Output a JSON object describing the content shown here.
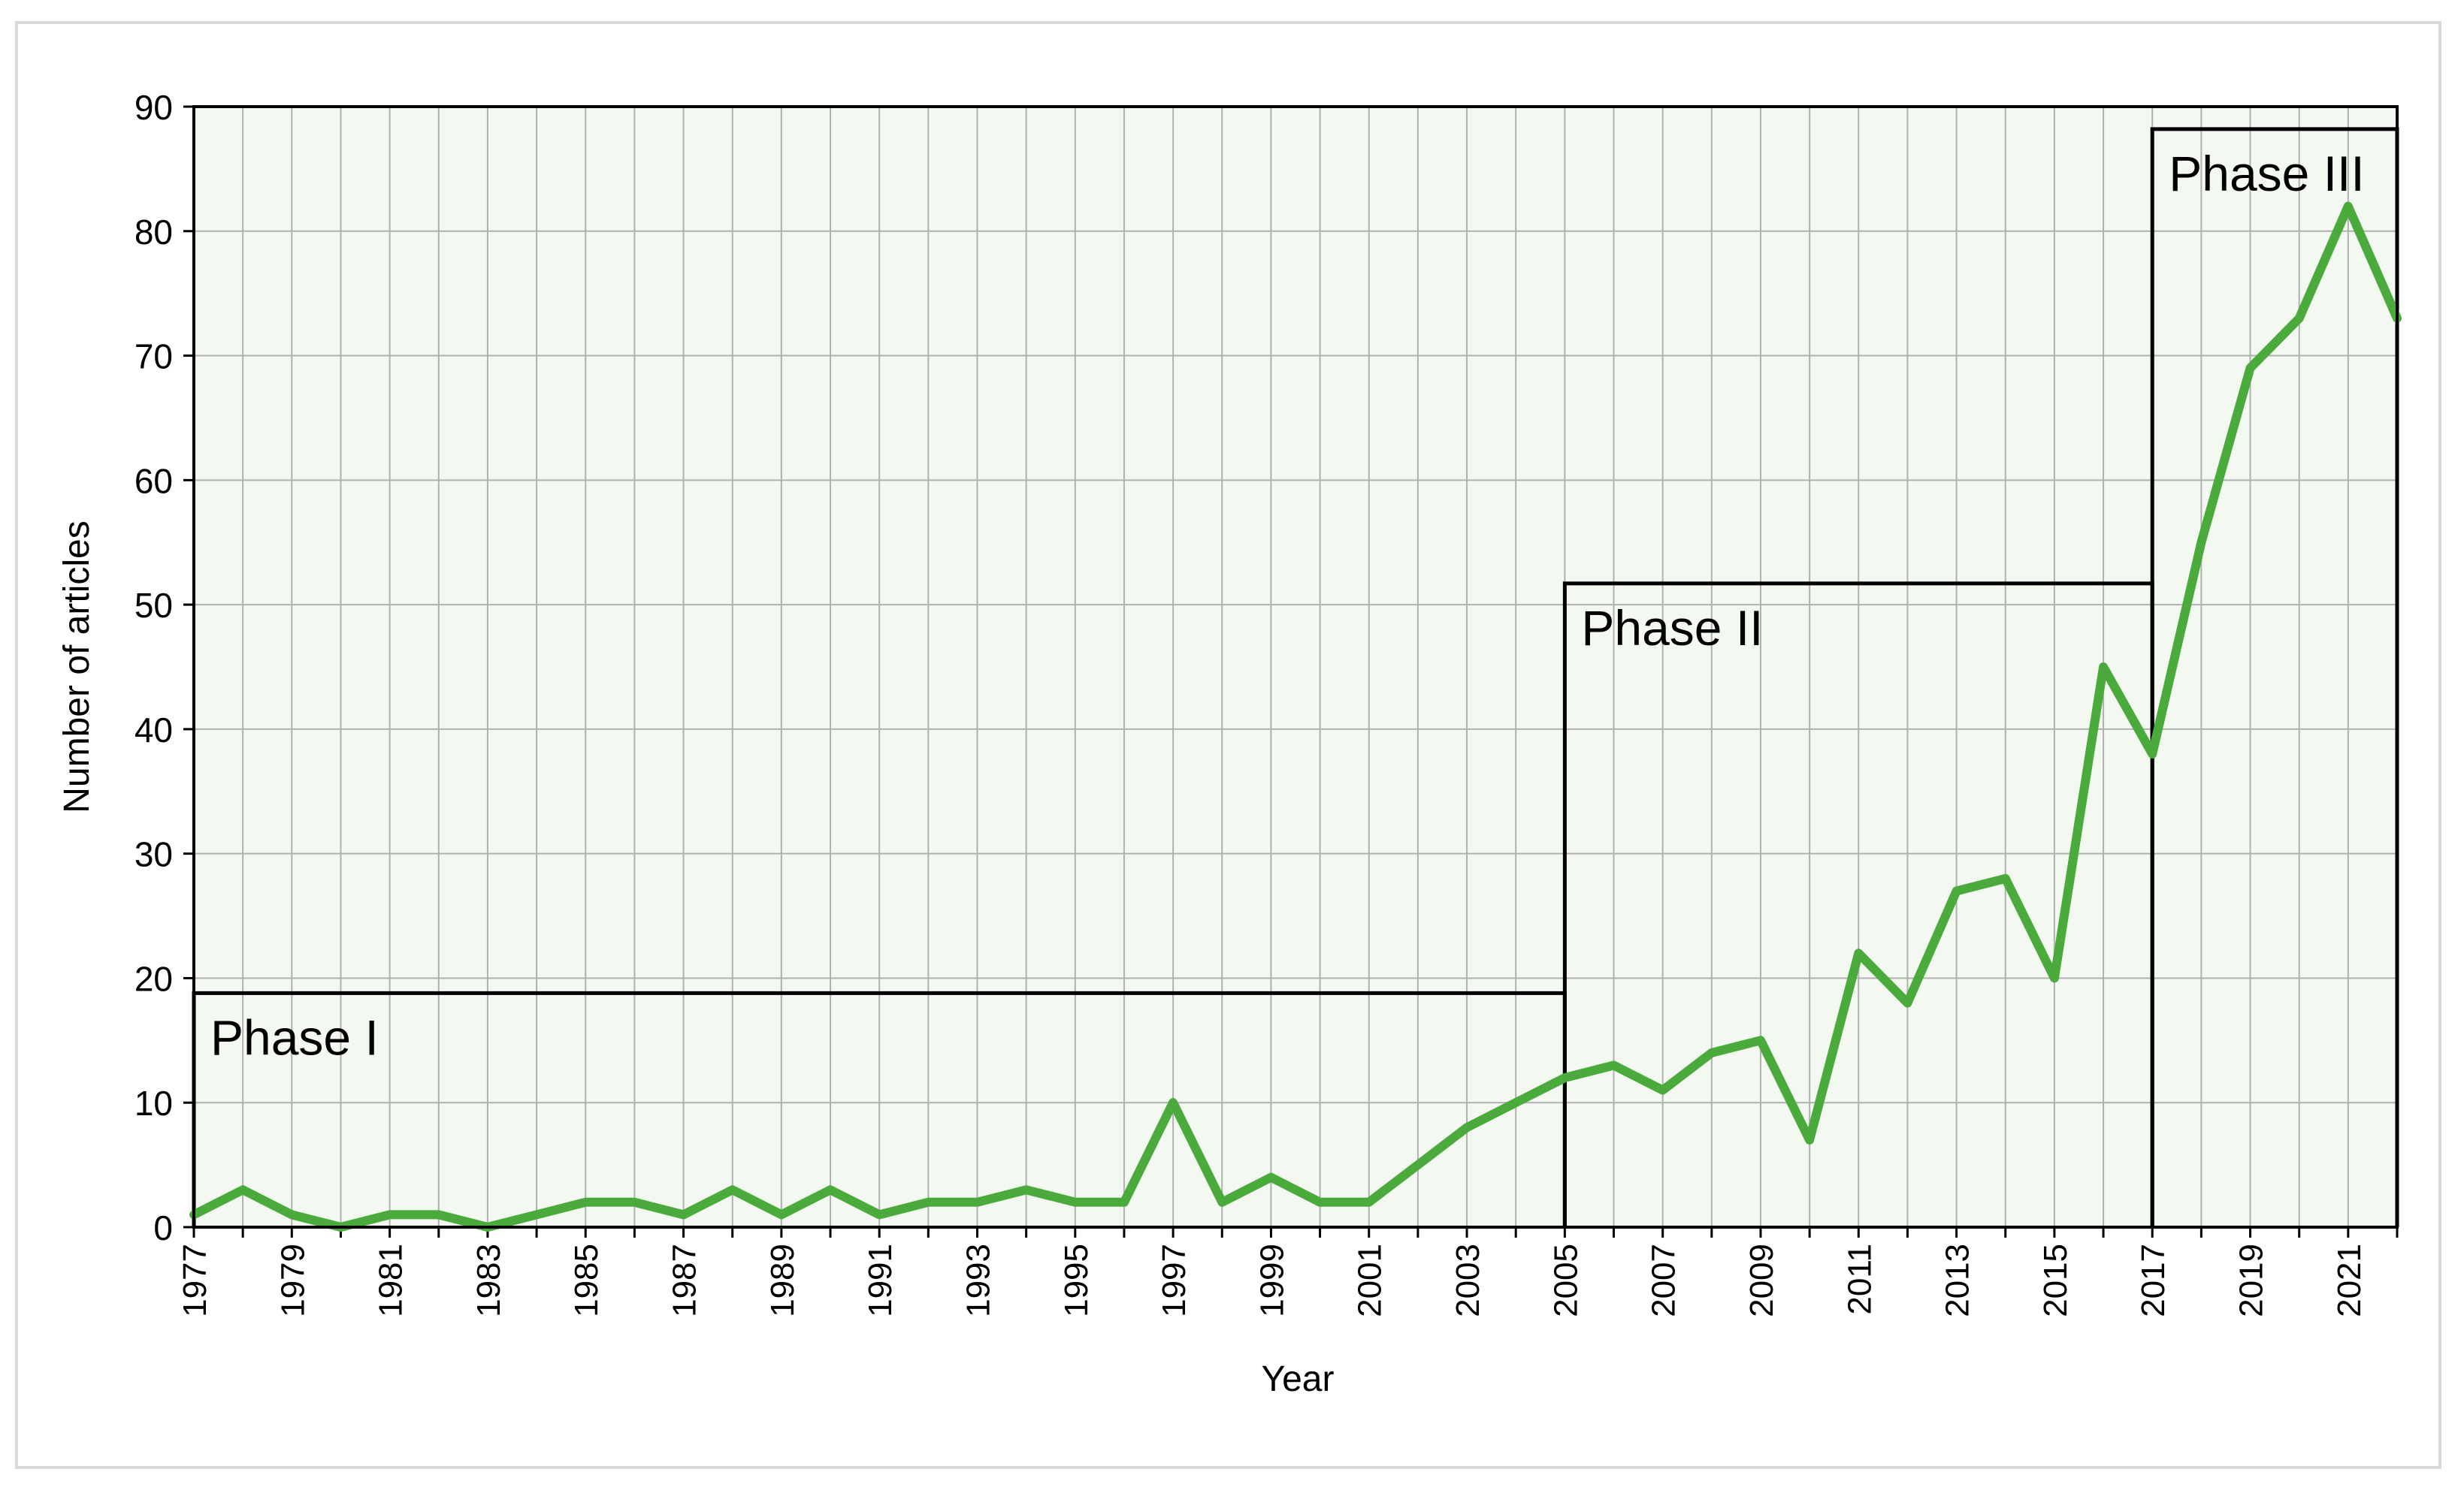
{
  "chart_data": {
    "type": "line",
    "title": "",
    "xlabel": "Year",
    "ylabel": "Number of articles",
    "xlim": [
      1977,
      2022
    ],
    "ylim": [
      0,
      90
    ],
    "y_ticks": [
      0,
      10,
      20,
      30,
      40,
      50,
      60,
      70,
      80,
      90
    ],
    "x_tick_labels": [
      "1977",
      "1979",
      "1981",
      "1983",
      "1985",
      "1987",
      "1989",
      "1991",
      "1993",
      "1995",
      "1997",
      "1999",
      "2001",
      "2003",
      "2005",
      "2007",
      "2009",
      "2011",
      "2013",
      "2015",
      "2017",
      "2019",
      "2021"
    ],
    "grid": true,
    "colors": {
      "line": "#4aaa3c",
      "plot_bg": "#f3f9f0",
      "grid": "#b0b0b0",
      "phase_box": "#000000"
    },
    "series": [
      {
        "x": [
          1977,
          1978,
          1979,
          1980,
          1981,
          1982,
          1983,
          1984,
          1985,
          1986,
          1987,
          1988,
          1989,
          1990,
          1991,
          1992,
          1993,
          1994,
          1995,
          1996,
          1997,
          1998,
          1999,
          2000,
          2001,
          2002,
          2003,
          2004,
          2005,
          2006,
          2007,
          2008,
          2009,
          2010,
          2011,
          2012,
          2013,
          2014,
          2015,
          2016,
          2017,
          2018,
          2019,
          2020,
          2021,
          2022
        ],
        "values": [
          1,
          3,
          1,
          0,
          1,
          1,
          0,
          1,
          2,
          2,
          1,
          3,
          1,
          3,
          1,
          2,
          2,
          3,
          2,
          2,
          10,
          2,
          4,
          2,
          2,
          5,
          8,
          10,
          12,
          13,
          11,
          14,
          15,
          7,
          22,
          18,
          27,
          28,
          20,
          45,
          38,
          55,
          69,
          73,
          82,
          73
        ]
      }
    ],
    "annotations": [
      {
        "label": "Phase I",
        "x_start": 1977,
        "x_end": 2005,
        "y_top": 18.8
      },
      {
        "label": "Phase II",
        "x_start": 2005,
        "x_end": 2017,
        "y_top": 51.7
      },
      {
        "label": "Phase III",
        "x_start": 2017,
        "x_end": 2022,
        "y_top": 88.2
      }
    ]
  }
}
